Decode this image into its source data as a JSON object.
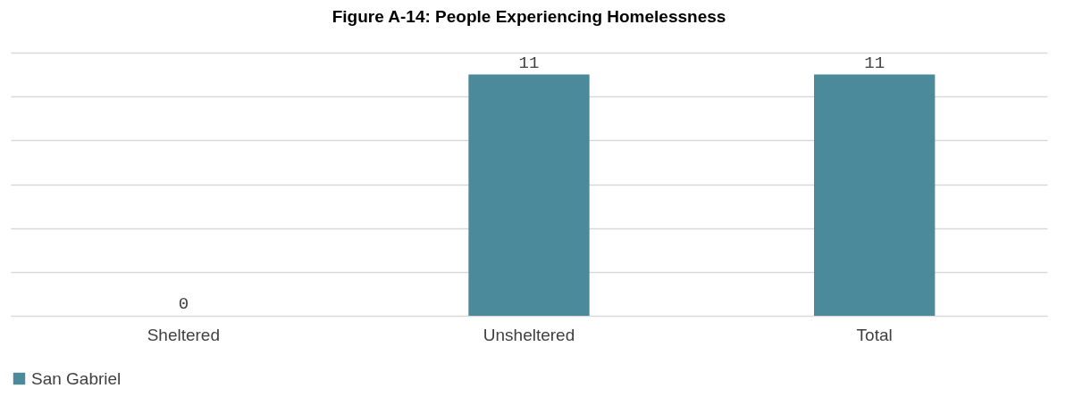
{
  "chart_data": {
    "type": "bar",
    "title": "Figure A-14: People Experiencing Homelessness",
    "categories": [
      "Sheltered",
      "Unsheltered",
      "Total"
    ],
    "series": [
      {
        "name": "San Gabriel",
        "color": "#4a8a9a",
        "values": [
          0,
          11,
          11
        ]
      }
    ],
    "ylim": [
      0,
      12
    ],
    "yticks": [
      0,
      2,
      4,
      6,
      8,
      10,
      12
    ],
    "tick_labels": "x",
    "grid": "y",
    "legend": "bottom",
    "data_labels": true
  }
}
